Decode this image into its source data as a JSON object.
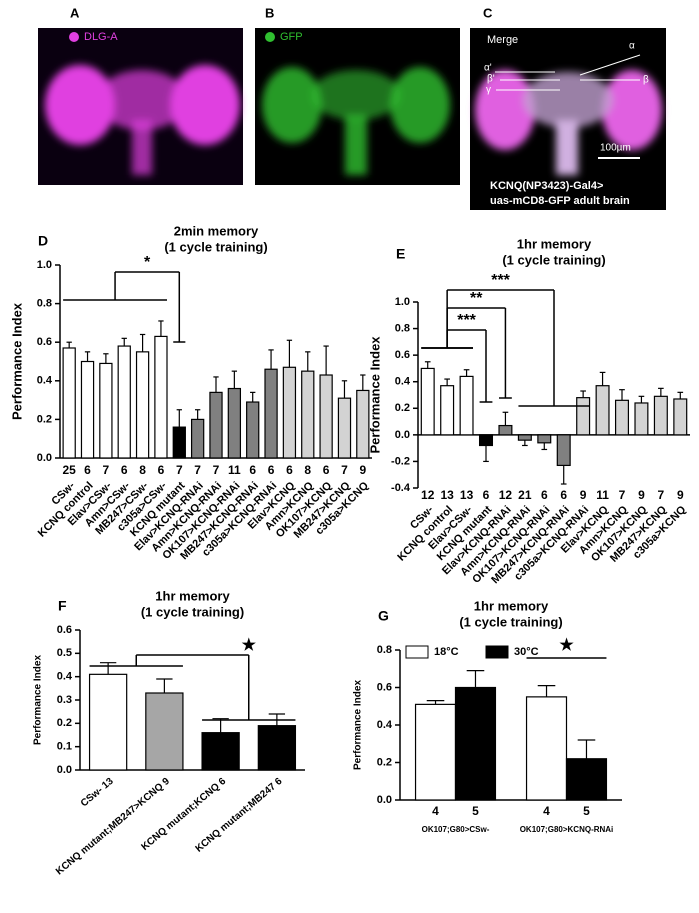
{
  "images": [
    {
      "letter": "A",
      "label": "DLG-A"
    },
    {
      "letter": "B",
      "label": "GFP"
    },
    {
      "letter": "C",
      "label": "Merge",
      "annotations": [
        "α",
        "α'",
        "β'",
        "β",
        "γ"
      ],
      "scale": "100µm",
      "caption": [
        "KCNQ(NP3423)-Gal4>",
        "uas-mCD8-GFP adult brain"
      ]
    }
  ],
  "chart_data": [
    {
      "type": "bar",
      "letter": "D",
      "title": "2min memory",
      "subtitle": "(1 cycle training)",
      "ylabel": "Performance Index",
      "categories": [
        "CSw-",
        "KCNQ control",
        "Elav>CSw-",
        "Amn>CSw-",
        "MB247>CSw-",
        "c305a>CSw-",
        "KCNQ mutant",
        "Elav>KCNQ-RNAi",
        "Amn>KCNQ-RNAi",
        "OK107>KCNQ-RNAi",
        "MB247>KCNQ-RNAi",
        "c305a>KCNQ-RNAi",
        "Elav>KCNQ",
        "Amn>KCNQ",
        "OK107>KCNQ",
        "MB247>KCNQ",
        "c305a>KCNQ"
      ],
      "series": [
        {
          "values": [
            0.57,
            0.5,
            0.49,
            0.58,
            0.55,
            0.63,
            0.16,
            0.2,
            0.34,
            0.36,
            0.29,
            0.46,
            0.47,
            0.45,
            0.43,
            0.31,
            0.35
          ],
          "errors": [
            0.03,
            0.05,
            0.05,
            0.04,
            0.09,
            0.08,
            0.09,
            0.05,
            0.08,
            0.09,
            0.05,
            0.1,
            0.14,
            0.1,
            0.15,
            0.09,
            0.08
          ],
          "n": [
            25,
            6,
            7,
            6,
            8,
            6,
            7,
            7,
            7,
            11,
            6,
            6,
            6,
            8,
            6,
            7,
            9
          ],
          "colors": [
            "#ffffff",
            "#ffffff",
            "#ffffff",
            "#ffffff",
            "#ffffff",
            "#ffffff",
            "#000000",
            "#808080",
            "#808080",
            "#808080",
            "#808080",
            "#808080",
            "#d3d3d3",
            "#d3d3d3",
            "#d3d3d3",
            "#d3d3d3",
            "#d3d3d3"
          ]
        }
      ],
      "ylim": [
        0,
        1
      ],
      "yticks": [
        {
          "value": 0,
          "label": "0.0"
        },
        0.2,
        0.4,
        0.6,
        0.8,
        {
          "value": 1,
          "label": "1.0"
        }
      ],
      "significance": [
        "*"
      ]
    },
    {
      "type": "bar",
      "letter": "E",
      "title": "1hr memory",
      "subtitle": "(1 cycle training)",
      "ylabel": "Performance Index",
      "categories": [
        "CSw-",
        "KCNQ control",
        "Elav>CSw-",
        "KCNQ mutant",
        "Elav>KCNQ-RNAi",
        "Amn>KCNQ-RNAi",
        "OK107>KCNQ-RNAi",
        "MB247>KCNQ-RNAi",
        "c305a>KCNQ-RNAi",
        "Elav>KCNQ",
        "Amn>KCNQ",
        "OK107>KCNQ",
        "MB247>KCNQ",
        "c305a>KCNQ"
      ],
      "series": [
        {
          "values": [
            0.5,
            0.37,
            0.44,
            -0.08,
            0.07,
            -0.04,
            -0.06,
            -0.23,
            0.28,
            0.37,
            0.26,
            0.24,
            0.29,
            0.27
          ],
          "errors": [
            0.05,
            0.05,
            0.05,
            0.12,
            0.1,
            0.04,
            0.05,
            0.14,
            0.05,
            0.1,
            0.08,
            0.05,
            0.06,
            0.05
          ],
          "n": [
            12,
            13,
            13,
            6,
            12,
            21,
            6,
            6,
            9,
            11,
            7,
            9,
            7,
            9
          ],
          "colors": [
            "#ffffff",
            "#ffffff",
            "#ffffff",
            "#000000",
            "#808080",
            "#808080",
            "#808080",
            "#808080",
            "#d3d3d3",
            "#d3d3d3",
            "#d3d3d3",
            "#d3d3d3",
            "#d3d3d3",
            "#d3d3d3"
          ]
        }
      ],
      "ylim": [
        -0.4,
        1
      ],
      "yticks": [
        -0.4,
        -0.2,
        {
          "value": 0,
          "label": "0.0"
        },
        0.2,
        0.4,
        0.6,
        0.8,
        {
          "value": 1,
          "label": "1.0"
        }
      ],
      "significance": [
        "***",
        "**",
        "***"
      ]
    },
    {
      "type": "bar",
      "letter": "F",
      "title": "1hr memory",
      "subtitle": "(1 cycle training)",
      "ylabel": "Performance Index",
      "categories": [
        "CSw- 13",
        "KCNQ mutant;MB247>KCNQ 9",
        "KCNQ mutant;KCNQ 6",
        "KCNQ mutant;MB247 6"
      ],
      "series": [
        {
          "values": [
            0.41,
            0.33,
            0.16,
            0.19
          ],
          "errors": [
            0.05,
            0.06,
            0.06,
            0.05
          ],
          "colors": [
            "#ffffff",
            "#a6a6a6",
            "#000000",
            "#000000"
          ]
        }
      ],
      "ylim": [
        0,
        0.6
      ],
      "yticks": [
        {
          "value": 0,
          "label": "0.0"
        },
        0.1,
        0.2,
        0.3,
        0.4,
        0.5,
        0.6
      ],
      "significance": [
        "★"
      ]
    },
    {
      "type": "bar",
      "letter": "G",
      "title": "1hr memory",
      "subtitle": "(1 cycle training)",
      "ylabel": "Performance Index",
      "categories": [
        "OK107;G80>CSw-",
        "OK107;G80>KCNQ-RNAi"
      ],
      "series": [
        {
          "name": "18°C",
          "color": "#ffffff",
          "values": [
            0.51,
            0.55
          ],
          "errors": [
            0.02,
            0.06
          ],
          "n": [
            4,
            4
          ]
        },
        {
          "name": "30°C",
          "color": "#000000",
          "values": [
            0.6,
            0.22
          ],
          "errors": [
            0.09,
            0.1
          ],
          "n": [
            5,
            5
          ]
        }
      ],
      "ylim": [
        0,
        0.8
      ],
      "yticks": [
        {
          "value": 0,
          "label": "0.0"
        },
        0.2,
        0.4,
        0.6,
        0.8
      ],
      "significance": [
        "★"
      ]
    }
  ]
}
